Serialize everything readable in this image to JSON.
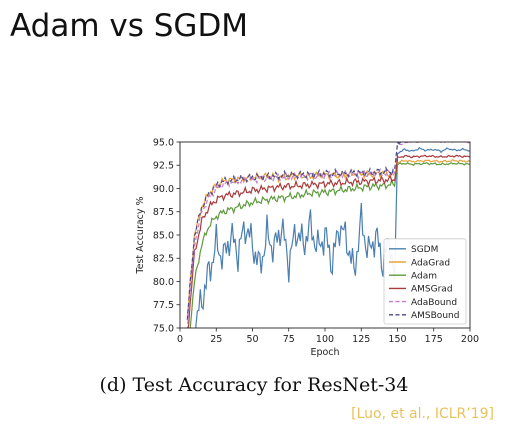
{
  "slide": {
    "title": "Adam vs SGDM",
    "caption": "(d) Test Accuracy for ResNet-34",
    "citation": "[Luo, et al., ICLR’19]"
  },
  "chart_data": {
    "type": "line",
    "title": "",
    "xlabel": "Epoch",
    "ylabel": "Test Accuracy %",
    "xlim": [
      0,
      200
    ],
    "ylim": [
      75,
      95
    ],
    "xticks": [
      0,
      25,
      50,
      75,
      100,
      125,
      150,
      175,
      200
    ],
    "yticks": [
      75.0,
      77.5,
      80.0,
      82.5,
      85.0,
      87.5,
      90.0,
      92.5,
      95.0
    ],
    "ytick_labels": [
      "75.0",
      "77.5",
      "80.0",
      "82.5",
      "85.0",
      "87.5",
      "90.0",
      "92.5",
      "95.0"
    ],
    "legend_position": "lower-right",
    "grid": false,
    "series": [
      {
        "name": "SGDM",
        "color": "#4a7fb0",
        "dash": "solid",
        "x": [
          5,
          10,
          15,
          20,
          25,
          30,
          35,
          40,
          45,
          50,
          55,
          60,
          65,
          70,
          75,
          80,
          85,
          90,
          95,
          100,
          105,
          110,
          115,
          120,
          125,
          130,
          135,
          140,
          145,
          148,
          150,
          155,
          160,
          165,
          170,
          175,
          180,
          185,
          190,
          195,
          200
        ],
        "y": [
          68,
          75,
          78,
          81,
          84,
          82.5,
          85,
          83,
          86,
          84,
          81.5,
          85,
          83.5,
          86,
          82,
          85.5,
          84,
          86,
          83.5,
          85,
          82,
          86,
          84.5,
          81,
          86.5,
          83,
          85,
          82,
          84.5,
          80,
          93.8,
          94.2,
          94,
          94.3,
          94.1,
          94.2,
          94,
          94.3,
          94.1,
          94.2,
          94.1
        ]
      },
      {
        "name": "AdaGrad",
        "color": "#e8a33a",
        "dash": "solid",
        "x": [
          5,
          10,
          15,
          20,
          25,
          30,
          40,
          50,
          60,
          70,
          80,
          90,
          100,
          110,
          120,
          130,
          140,
          148,
          150,
          155,
          160,
          170,
          180,
          190,
          200
        ],
        "y": [
          76,
          85,
          88,
          89.5,
          90.3,
          90.8,
          91,
          91.2,
          91.3,
          91.2,
          91.4,
          91.3,
          91.5,
          91.4,
          91.6,
          91.5,
          91.7,
          91.5,
          92.8,
          93,
          92.9,
          93,
          92.9,
          93,
          92.9
        ]
      },
      {
        "name": "Adam",
        "color": "#5f9a3c",
        "dash": "solid",
        "x": [
          5,
          10,
          15,
          20,
          25,
          30,
          40,
          50,
          60,
          70,
          80,
          90,
          100,
          110,
          120,
          130,
          140,
          148,
          150,
          155,
          160,
          170,
          180,
          190,
          200
        ],
        "y": [
          72,
          80,
          84,
          86,
          87,
          87.5,
          88,
          88.5,
          88.8,
          89,
          89.2,
          89.5,
          89.6,
          89.8,
          90,
          90.2,
          90.3,
          90.5,
          92.6,
          92.7,
          92.6,
          92.7,
          92.6,
          92.7,
          92.6
        ]
      },
      {
        "name": "AMSGrad",
        "color": "#a83a3a",
        "dash": "solid",
        "x": [
          5,
          10,
          15,
          20,
          25,
          30,
          40,
          50,
          60,
          70,
          80,
          90,
          100,
          110,
          120,
          130,
          140,
          148,
          150,
          155,
          160,
          170,
          180,
          190,
          200
        ],
        "y": [
          74,
          83,
          86.5,
          88,
          88.8,
          89.2,
          89.5,
          89.8,
          90,
          90.2,
          90.3,
          90.4,
          90.5,
          90.6,
          90.7,
          90.8,
          90.9,
          91,
          93.3,
          93.5,
          93.4,
          93.5,
          93.4,
          93.5,
          93.4
        ]
      },
      {
        "name": "AdaBound",
        "color": "#c27ac9",
        "dash": "dashed",
        "x": [
          5,
          10,
          15,
          20,
          25,
          30,
          40,
          50,
          60,
          70,
          80,
          90,
          100,
          110,
          120,
          130,
          140,
          148,
          150,
          155,
          160,
          170,
          180,
          190,
          200
        ],
        "y": [
          75,
          84,
          87.5,
          89,
          90,
          90.5,
          90.8,
          91,
          91.1,
          91.2,
          91.3,
          91.4,
          91.4,
          91.5,
          91.5,
          91.6,
          91.6,
          91.7,
          94.7,
          94.9,
          95,
          95.1,
          95,
          95.1,
          95
        ]
      },
      {
        "name": "AMSBound",
        "color": "#4d4a8a",
        "dash": "dashed",
        "x": [
          5,
          10,
          15,
          20,
          25,
          30,
          40,
          50,
          60,
          70,
          80,
          90,
          100,
          110,
          120,
          130,
          140,
          148,
          150,
          155,
          160,
          170,
          180,
          190,
          200
        ],
        "y": [
          76,
          85,
          88,
          89.5,
          90.3,
          90.8,
          91,
          91.2,
          91.3,
          91.4,
          91.5,
          91.5,
          91.6,
          91.6,
          91.7,
          91.7,
          91.8,
          91.8,
          94.9,
          95.1,
          95.2,
          95.3,
          95.2,
          95.3,
          95.2
        ]
      }
    ]
  }
}
